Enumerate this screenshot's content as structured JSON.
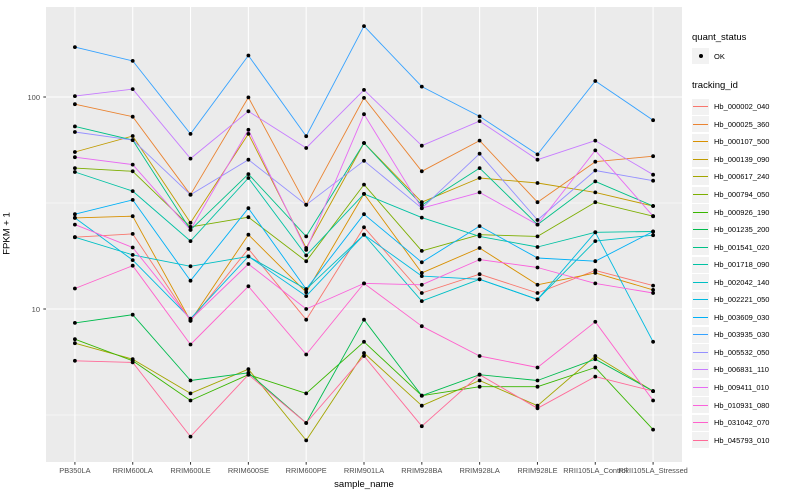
{
  "figure": {
    "x_axis_title": "sample_name",
    "y_axis_title": "FPKM + 1",
    "panel_background": "#EBEBEB",
    "grid_color": "#FFFFFF",
    "tick_label_color": "#4D4D4D",
    "legend_key_background": "#F2F2F2",
    "point_color": "#000000"
  },
  "legend": {
    "quant_title": "quant_status",
    "quant_items": [
      {
        "label": "OK",
        "marker": "point"
      }
    ],
    "tracking_title": "tracking_id"
  },
  "chart_data": {
    "type": "line",
    "title": "",
    "xlabel": "sample_name",
    "ylabel": "FPKM + 1",
    "y_scale": "log10",
    "ylim": [
      1.9,
      266
    ],
    "y_major_ticks": [
      10,
      100
    ],
    "y_minor_gridlines": [
      3.162,
      31.62
    ],
    "grid": true,
    "legend_position": "right",
    "point_marker_label": "OK",
    "categories": [
      "PB350LA",
      "RRIM600LA",
      "RRIM600LE",
      "RRIM600SE",
      "RRIM600PE",
      "RRIM901LA",
      "RRIM928BA",
      "RRIM928LA",
      "RRIM928LE",
      "RRII105LA_Control",
      "RRII105LA_Stressed"
    ],
    "series": [
      {
        "name": "Hb_000002_040",
        "color": "#F8766D",
        "values": [
          21.8,
          22.6,
          8.8,
          19.2,
          8.9,
          24.3,
          11.9,
          14.6,
          11.9,
          15.2,
          12.9
        ]
      },
      {
        "name": "Hb_000025_360",
        "color": "#EA8331",
        "values": [
          92.5,
          80.7,
          34.6,
          99.6,
          31.0,
          99.0,
          44.6,
          62.3,
          31.9,
          49.5,
          52.6
        ]
      },
      {
        "name": "Hb_000107_500",
        "color": "#D89000",
        "values": [
          26.9,
          27.4,
          8.8,
          22.4,
          12.0,
          34.9,
          14.8,
          19.4,
          13.0,
          14.8,
          12.3
        ]
      },
      {
        "name": "Hb_000139_090",
        "color": "#C09B00",
        "values": [
          55.0,
          65.5,
          25.5,
          67.0,
          19.4,
          60.7,
          31.9,
          41.5,
          39.3,
          35.5,
          30.6
        ]
      },
      {
        "name": "Hb_000617_240",
        "color": "#A3A500",
        "values": [
          6.9,
          5.8,
          4.0,
          5.2,
          2.4,
          6.2,
          3.5,
          4.6,
          3.5,
          6.0,
          4.1
        ]
      },
      {
        "name": "Hb_000794_050",
        "color": "#7CAE00",
        "values": [
          46.2,
          44.6,
          24.4,
          27.1,
          16.8,
          38.6,
          18.8,
          22.4,
          22.0,
          31.9,
          27.4
        ]
      },
      {
        "name": "Hb_000926_190",
        "color": "#39B600",
        "values": [
          7.2,
          5.7,
          3.7,
          4.9,
          4.0,
          7.0,
          3.9,
          4.3,
          4.3,
          5.3,
          2.7
        ]
      },
      {
        "name": "Hb_001235_200",
        "color": "#00BB4E",
        "values": [
          8.6,
          9.4,
          4.6,
          5.0,
          2.9,
          8.9,
          3.9,
          4.9,
          4.6,
          5.8,
          4.1
        ]
      },
      {
        "name": "Hb_001541_020",
        "color": "#00C087",
        "values": [
          72.7,
          62.6,
          23.6,
          43.3,
          22.0,
          60.7,
          30.9,
          46.2,
          25.0,
          40.0,
          30.6
        ]
      },
      {
        "name": "Hb_001718_090",
        "color": "#00C1A3",
        "values": [
          44.3,
          36.0,
          20.9,
          41.5,
          17.9,
          34.9,
          27.0,
          22.0,
          19.6,
          23.0,
          23.2
        ]
      },
      {
        "name": "Hb_002042_140",
        "color": "#00BFC4",
        "values": [
          21.8,
          18.0,
          15.9,
          17.7,
          12.4,
          22.4,
          10.9,
          13.8,
          11.1,
          20.9,
          22.3
        ]
      },
      {
        "name": "Hb_002221_050",
        "color": "#00BAE0",
        "values": [
          26.9,
          17.0,
          9.0,
          17.7,
          11.5,
          22.4,
          14.3,
          13.8,
          11.1,
          23.0,
          7.0
        ]
      },
      {
        "name": "Hb_003609_030",
        "color": "#00B0F6",
        "values": [
          28.0,
          32.7,
          13.6,
          29.9,
          12.4,
          28.0,
          16.6,
          24.6,
          17.4,
          16.8,
          23.2
        ]
      },
      {
        "name": "Hb_003935_030",
        "color": "#35A2FF",
        "values": [
          172,
          148,
          67,
          157,
          65.3,
          216,
          112,
          81,
          53.6,
          119,
          77.7
        ]
      },
      {
        "name": "Hb_005532_050",
        "color": "#9590FF",
        "values": [
          68.4,
          62.6,
          34.6,
          50.6,
          31.0,
          50.0,
          29.9,
          54.0,
          26.3,
          45.0,
          40.3
        ]
      },
      {
        "name": "Hb_006831_110",
        "color": "#C77CFF",
        "values": [
          101,
          109,
          51.2,
          85.6,
          57.5,
          108,
          58.9,
          77.0,
          50.6,
          62.3,
          43.0
        ]
      },
      {
        "name": "Hb_009411_010",
        "color": "#E76BF3",
        "values": [
          52.0,
          48.0,
          23.6,
          70.0,
          19.0,
          83.0,
          29.9,
          35.5,
          25.0,
          56.0,
          27.4
        ]
      },
      {
        "name": "Hb_010931_080",
        "color": "#FA62DB",
        "values": [
          25.0,
          19.5,
          8.9,
          16.3,
          10.0,
          13.2,
          13.0,
          17.1,
          15.7,
          13.2,
          11.9
        ]
      },
      {
        "name": "Hb_031042_070",
        "color": "#FF61CC",
        "values": [
          12.5,
          16.0,
          6.8,
          12.8,
          6.1,
          13.2,
          8.3,
          6.0,
          5.3,
          8.7,
          3.7
        ]
      },
      {
        "name": "Hb_045793_010",
        "color": "#FF6A98",
        "values": [
          5.7,
          5.6,
          2.5,
          4.9,
          2.9,
          6.0,
          2.8,
          4.9,
          3.4,
          4.8,
          4.1
        ]
      }
    ]
  }
}
